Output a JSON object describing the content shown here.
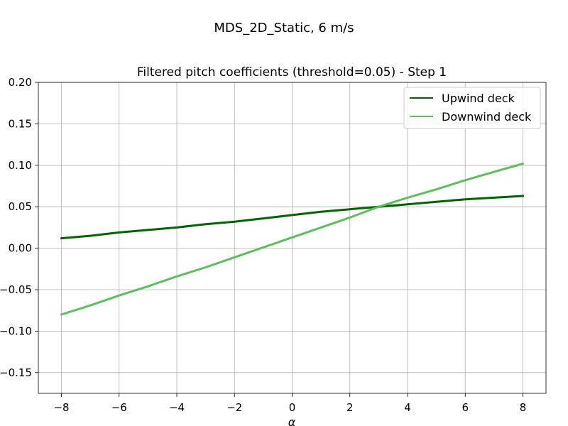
{
  "figure": {
    "suptitle": "MDS_2D_Static, 6 m/s"
  },
  "chart_data": {
    "type": "line",
    "title": "Filtered pitch coefficients (threshold=0.05) - Step 1",
    "xlabel": "α",
    "ylabel": "",
    "xlim": [
      -8.8,
      8.8
    ],
    "ylim": [
      -0.175,
      0.2
    ],
    "xticks": [
      -8,
      -6,
      -4,
      -2,
      0,
      2,
      4,
      6,
      8
    ],
    "xtick_labels": [
      "−8",
      "−6",
      "−4",
      "−2",
      "0",
      "2",
      "4",
      "6",
      "8"
    ],
    "yticks": [
      -0.15,
      -0.1,
      -0.05,
      0.0,
      0.05,
      0.1,
      0.15,
      0.2
    ],
    "ytick_labels": [
      "−0.15",
      "−0.10",
      "−0.05",
      "0.00",
      "0.05",
      "0.10",
      "0.15",
      "0.20"
    ],
    "grid": true,
    "legend_position": "top-right",
    "series": [
      {
        "name": "Upwind deck",
        "color": "#006400",
        "x": [
          -8,
          -7,
          -6,
          -5,
          -4,
          -3,
          -2,
          -1,
          0,
          1,
          2,
          3,
          4,
          5,
          6,
          7,
          8
        ],
        "y": [
          0.012,
          0.015,
          0.019,
          0.022,
          0.025,
          0.029,
          0.032,
          0.036,
          0.04,
          0.044,
          0.047,
          0.05,
          0.053,
          0.056,
          0.059,
          0.061,
          0.063
        ]
      },
      {
        "name": "Downwind deck",
        "color": "#5cbf5c",
        "x": [
          -8,
          -7,
          -6,
          -5,
          -4,
          -3,
          -2,
          -1,
          0,
          1,
          2,
          3,
          4,
          5,
          6,
          7,
          8
        ],
        "y": [
          -0.08,
          -0.069,
          -0.057,
          -0.046,
          -0.034,
          -0.023,
          -0.011,
          0.001,
          0.013,
          0.025,
          0.037,
          0.05,
          0.061,
          0.071,
          0.082,
          0.092,
          0.102
        ]
      }
    ]
  }
}
